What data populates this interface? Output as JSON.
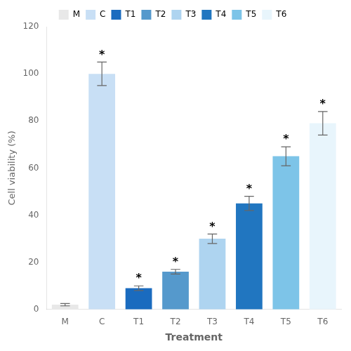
{
  "chart_data": {
    "type": "bar",
    "xlabel": "Treatment",
    "ylabel": "Cell viability (%)",
    "categories": [
      "M",
      "C",
      "T1",
      "T2",
      "T3",
      "T4",
      "T5",
      "T6"
    ],
    "values": [
      2.0,
      100.0,
      9.0,
      16.0,
      30.0,
      45.0,
      65.0,
      79.0
    ],
    "errors": [
      0.5,
      5.0,
      1.0,
      1.0,
      2.0,
      3.0,
      4.0,
      5.0
    ],
    "colors": [
      "#e8e8e8",
      "#c8dff5",
      "#1a6bbf",
      "#5599cc",
      "#aed4f0",
      "#2176c0",
      "#7dc4e8",
      "#e8f5fc"
    ],
    "annotations": [
      {
        "category": "C",
        "text": "*"
      },
      {
        "category": "T1",
        "text": "*"
      },
      {
        "category": "T2",
        "text": "*"
      },
      {
        "category": "T3",
        "text": "*"
      },
      {
        "category": "T4",
        "text": "*"
      },
      {
        "category": "T5",
        "text": "*"
      },
      {
        "category": "T6",
        "text": "*"
      }
    ],
    "ylim": [
      0,
      120
    ],
    "yticks": [
      0,
      20,
      40,
      60,
      80,
      100,
      120
    ],
    "grid": false,
    "legend": "top"
  }
}
